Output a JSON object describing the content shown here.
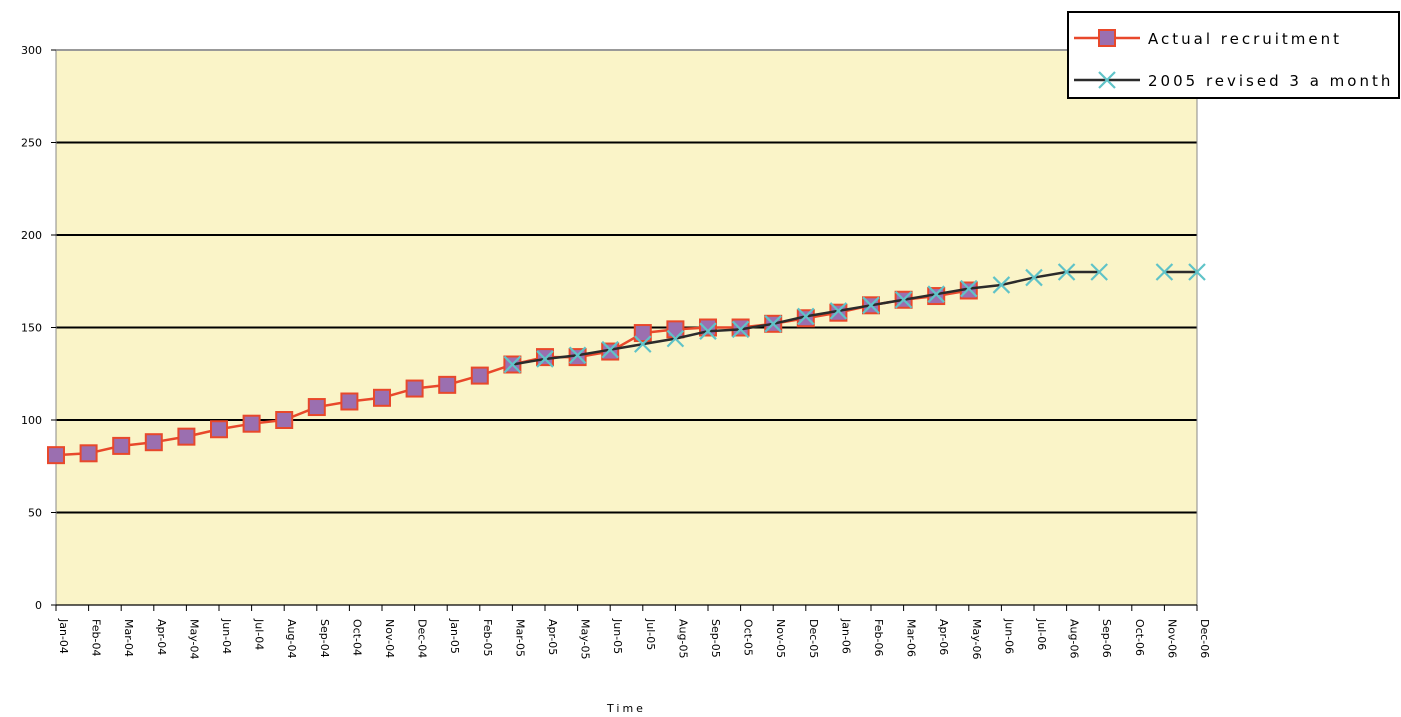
{
  "chart_data": {
    "type": "line",
    "title": "",
    "xlabel": "Time",
    "ylabel": "",
    "ylim": [
      0,
      300
    ],
    "yticks": [
      0,
      50,
      100,
      150,
      200,
      250,
      300
    ],
    "grid": true,
    "legend_position": "top-right",
    "colors": {
      "plot_bg": "#FAF4C8",
      "gridline": "#000000",
      "actual_line": "#E8482B",
      "actual_marker_fill": "#9B6FB0",
      "revised_line": "#2B2B2B",
      "revised_marker": "#5FC3C8"
    },
    "categories": [
      "Jan-04",
      "Feb-04",
      "Mar-04",
      "Apr-04",
      "May-04",
      "Jun-04",
      "Jul-04",
      "Aug-04",
      "Sep-04",
      "Oct-04",
      "Nov-04",
      "Dec-04",
      "Jan-05",
      "Feb-05",
      "Mar-05",
      "Apr-05",
      "May-05",
      "Jun-05",
      "Jul-05",
      "Aug-05",
      "Sep-05",
      "Oct-05",
      "Nov-05",
      "Dec-05",
      "Jan-06",
      "Feb-06",
      "Mar-06",
      "Apr-06",
      "May-06",
      "Jun-06",
      "Jul-06",
      "Aug-06",
      "Sep-06",
      "Oct-06",
      "Nov-06",
      "Dec-06"
    ],
    "series": [
      {
        "name": "Actual recruitment",
        "marker": "square",
        "values": [
          81,
          82,
          86,
          88,
          91,
          95,
          98,
          100,
          107,
          110,
          112,
          117,
          119,
          124,
          130,
          134,
          134,
          137,
          147,
          149,
          150,
          150,
          152,
          155,
          158,
          162,
          165,
          167,
          170,
          null,
          null,
          null,
          null,
          null,
          null,
          null
        ]
      },
      {
        "name": "2005 revised 3 a month",
        "marker": "x",
        "values": [
          null,
          null,
          null,
          null,
          null,
          null,
          null,
          null,
          null,
          null,
          null,
          null,
          null,
          null,
          130,
          133,
          135,
          138,
          141,
          144,
          148,
          149,
          152,
          156,
          159,
          162,
          165,
          168,
          171,
          173,
          177,
          180,
          180,
          null,
          180,
          180
        ]
      }
    ]
  }
}
